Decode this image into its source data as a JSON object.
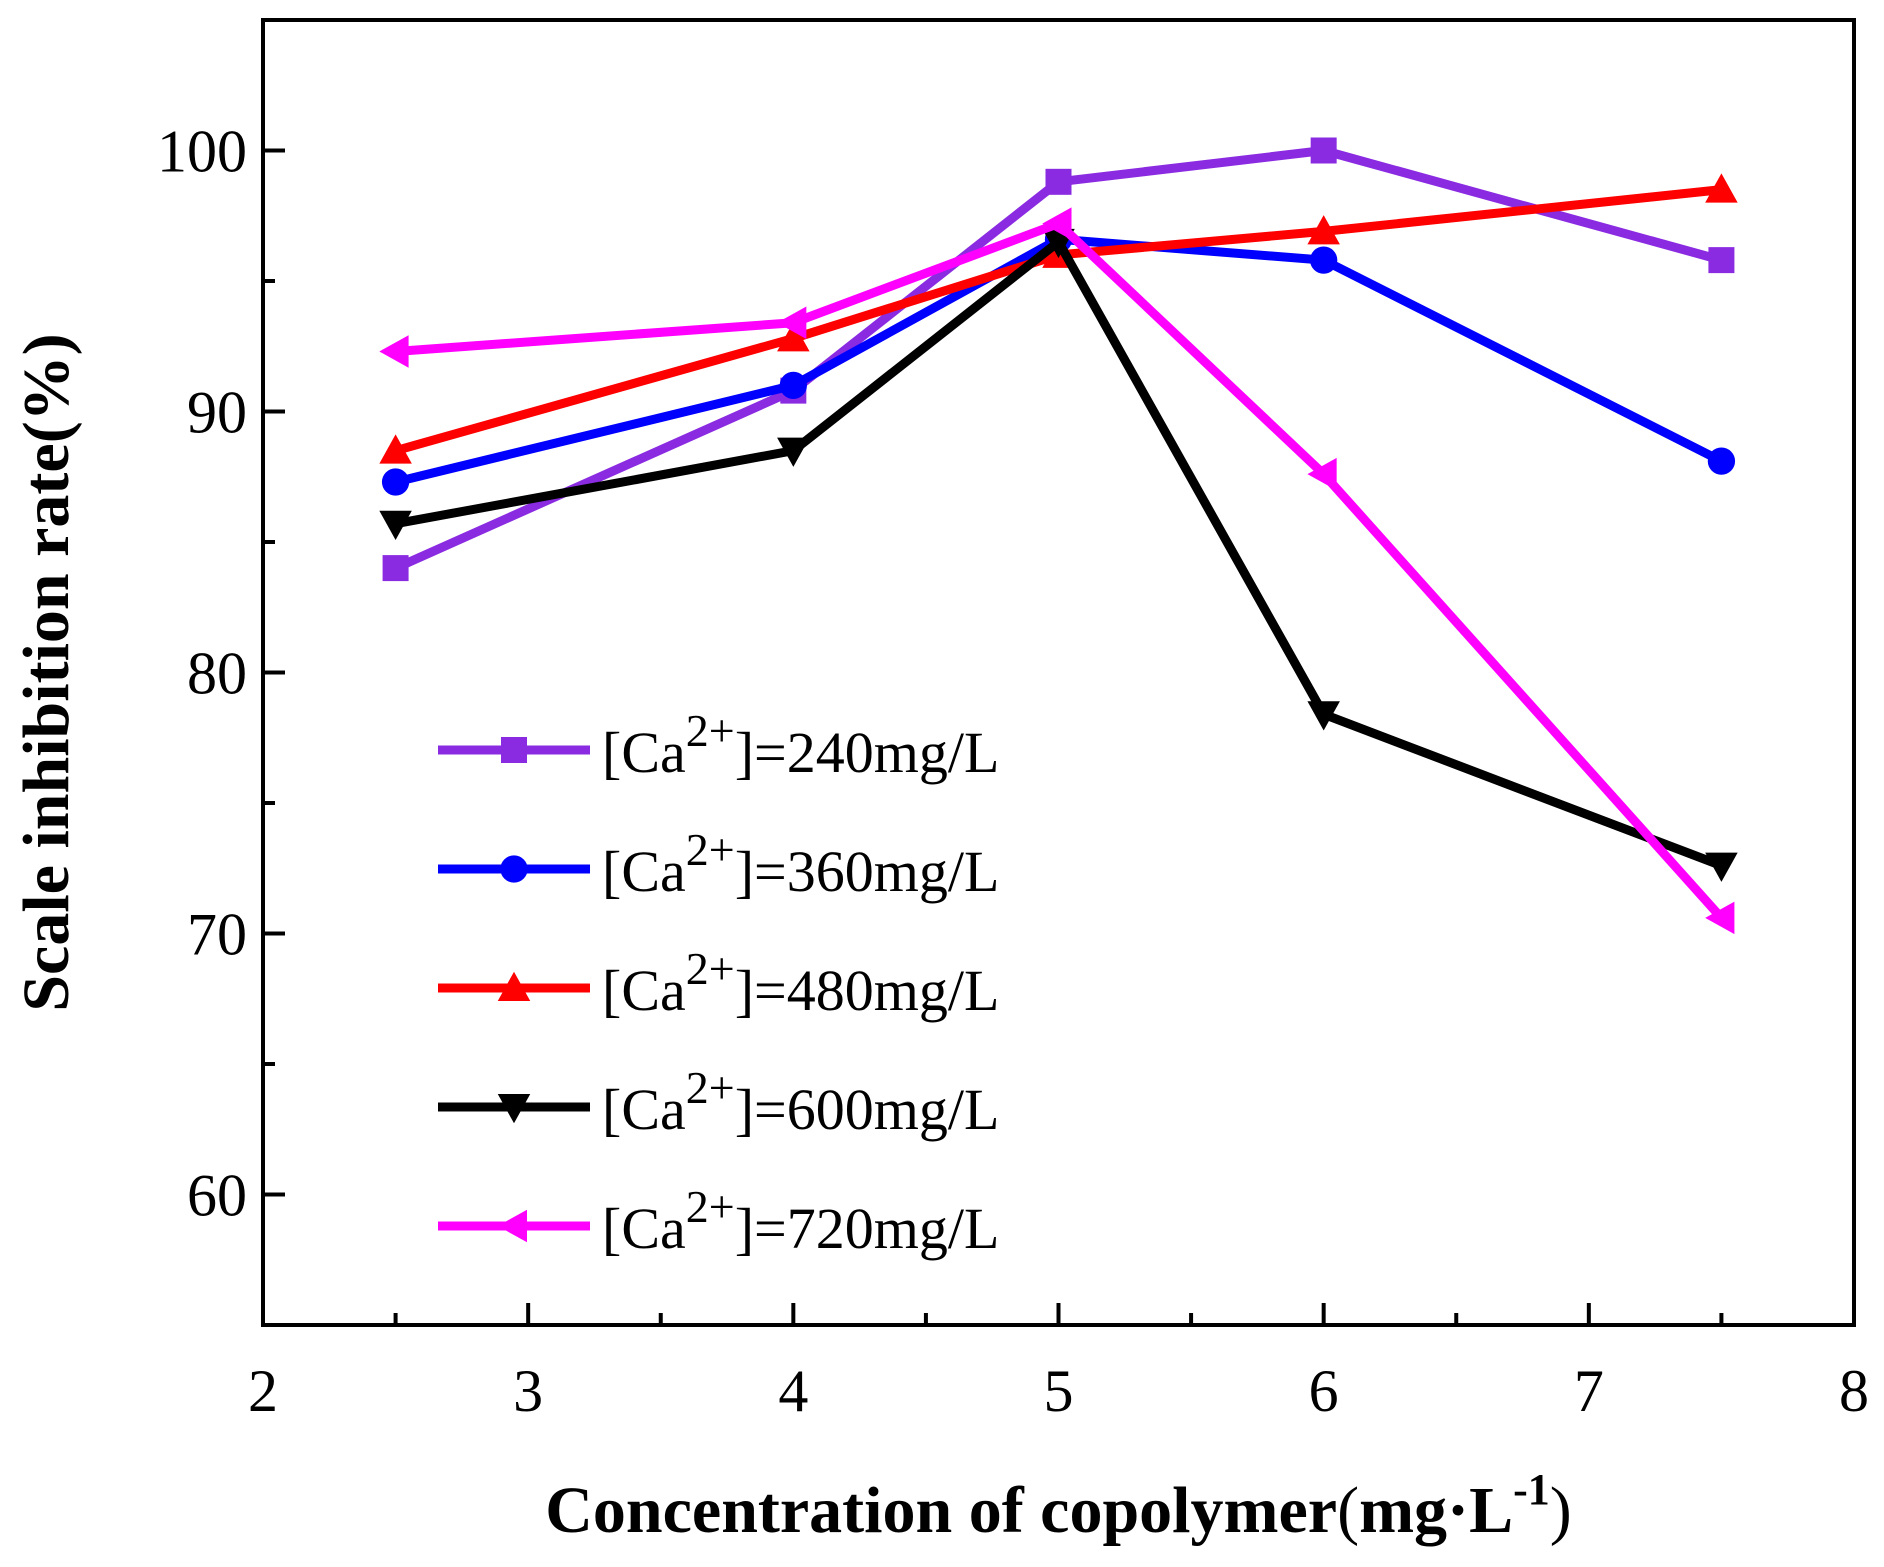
{
  "chart_data": {
    "type": "line",
    "title": "",
    "xlabel": "Concentration of copolymer",
    "xlabel_unit": "mg·L",
    "xlabel_unit_exponent": "-1",
    "ylabel": "Scale inhibition rate(%)",
    "xlim": [
      2,
      8
    ],
    "ylim": [
      55,
      105
    ],
    "x_ticks": [
      2,
      3,
      4,
      5,
      6,
      7,
      8
    ],
    "y_ticks": [
      60,
      70,
      80,
      90,
      100
    ],
    "legend_position": "lower-left",
    "grid": false,
    "x": [
      2.5,
      4,
      5,
      6,
      7.5
    ],
    "series": [
      {
        "name": "[Ca2+]=240mg/L",
        "legend_prefix": "[Ca",
        "legend_sup": "2+",
        "legend_suffix": "]=240mg/L",
        "color": "#8a2be2",
        "marker": "square",
        "values": [
          84.0,
          90.8,
          98.8,
          100.0,
          95.8
        ]
      },
      {
        "name": "[Ca2+]=360mg/L",
        "legend_prefix": "[Ca",
        "legend_sup": "2+",
        "legend_suffix": "]=360mg/L",
        "color": "#0000ff",
        "marker": "circle",
        "values": [
          87.3,
          91.0,
          96.6,
          95.8,
          88.1
        ]
      },
      {
        "name": "[Ca2+]=480mg/L",
        "legend_prefix": "[Ca",
        "legend_sup": "2+",
        "legend_suffix": "]=480mg/L",
        "color": "#ff0000",
        "marker": "triangle-up",
        "values": [
          88.5,
          92.8,
          96.0,
          96.9,
          98.5
        ]
      },
      {
        "name": "[Ca2+]=600mg/L",
        "legend_prefix": "[Ca",
        "legend_sup": "2+",
        "legend_suffix": "]=600mg/L",
        "color": "#000000",
        "marker": "triangle-down",
        "values": [
          85.7,
          88.5,
          96.5,
          78.4,
          72.6
        ]
      },
      {
        "name": "[Ca2+]=720mg/L",
        "legend_prefix": "[Ca",
        "legend_sup": "2+",
        "legend_suffix": "]=720mg/L",
        "color": "#ff00ff",
        "marker": "triangle-left",
        "values": [
          92.3,
          93.4,
          97.2,
          87.6,
          70.6
        ]
      }
    ]
  }
}
